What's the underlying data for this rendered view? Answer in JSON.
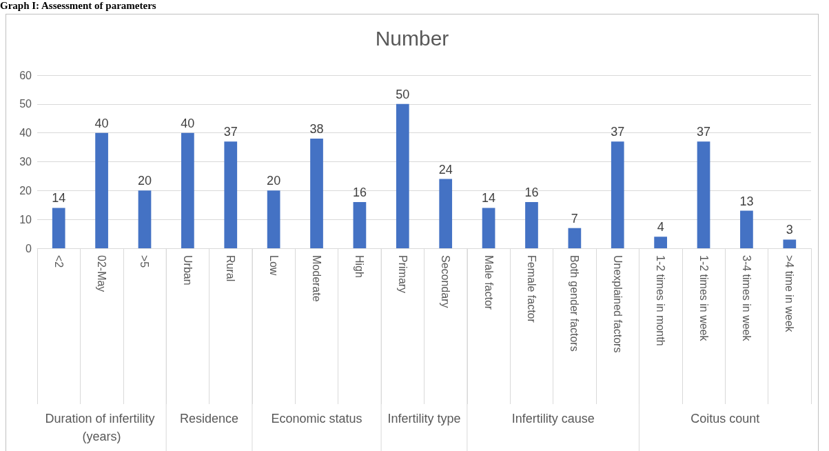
{
  "chart_data": {
    "type": "bar",
    "title": "Number",
    "categories": [
      "<2",
      "02-May",
      ">5",
      "Urban",
      "Rural",
      "Low",
      "Moderate",
      "High",
      "Primary",
      "Secondary",
      "Male factor",
      "Female factor",
      "Both gender factors",
      "Unexplained factors",
      "1-2 times in month",
      "1-2 times in week",
      "3-4 times in week",
      ">4 time in week"
    ],
    "values": [
      14,
      40,
      20,
      40,
      37,
      20,
      38,
      16,
      50,
      24,
      14,
      16,
      7,
      37,
      4,
      37,
      13,
      3
    ],
    "color": "#4472c4",
    "ylim": [
      0,
      60
    ],
    "yticks": [
      0,
      10,
      20,
      30,
      40,
      50,
      60
    ],
    "grid": "y",
    "data_labels": true,
    "annotations": [
      "Graph I: Assessment of parameters",
      "Duration of infertility (years)",
      "Residence",
      "Economic status",
      "Infertility type",
      "Infertility cause",
      "Coitus count"
    ]
  }
}
